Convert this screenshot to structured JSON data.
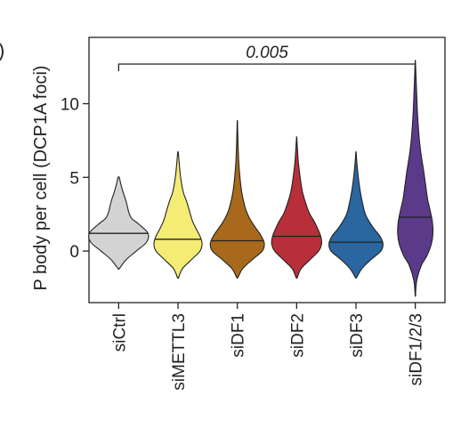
{
  "panel_label": ")",
  "chart_data": {
    "type": "violin",
    "title": "",
    "xlabel": "",
    "ylabel": "P body per cell (DCP1A foci)",
    "ylim": [
      -3.5,
      14.5
    ],
    "yticks": [
      0,
      5,
      10
    ],
    "categories": [
      "siCtrl",
      "siMETTL3",
      "siDF1",
      "siDF2",
      "siDF3",
      "siDF1/2/3"
    ],
    "colors": [
      "#d3d3d3",
      "#f5ec75",
      "#a8691c",
      "#b82f3a",
      "#2a66a0",
      "#5c3a8a"
    ],
    "median": [
      1.2,
      0.8,
      0.7,
      1.0,
      0.6,
      2.3
    ],
    "min": [
      -1.2,
      -1.8,
      -1.8,
      -1.8,
      -1.8,
      -3.0
    ],
    "max": [
      5.0,
      6.7,
      8.8,
      7.7,
      6.7,
      12.9
    ],
    "density_profiles": [
      [
        [
          -1.2,
          0.02
        ],
        [
          -0.6,
          0.25
        ],
        [
          0,
          0.6
        ],
        [
          0.6,
          0.95
        ],
        [
          1.2,
          1.0
        ],
        [
          1.8,
          0.7
        ],
        [
          2.2,
          0.45
        ],
        [
          2.6,
          0.35
        ],
        [
          3.0,
          0.3
        ],
        [
          3.4,
          0.25
        ],
        [
          4.0,
          0.15
        ],
        [
          4.5,
          0.08
        ],
        [
          5.0,
          0.02
        ]
      ],
      [
        [
          -1.8,
          0.02
        ],
        [
          -1.2,
          0.15
        ],
        [
          -0.6,
          0.45
        ],
        [
          0,
          0.75
        ],
        [
          0.5,
          0.82
        ],
        [
          1.0,
          0.75
        ],
        [
          1.5,
          0.62
        ],
        [
          2.0,
          0.5
        ],
        [
          2.5,
          0.42
        ],
        [
          3.0,
          0.35
        ],
        [
          3.5,
          0.27
        ],
        [
          4.0,
          0.18
        ],
        [
          5.0,
          0.09
        ],
        [
          6.0,
          0.04
        ],
        [
          6.7,
          0.01
        ]
      ],
      [
        [
          -1.8,
          0.02
        ],
        [
          -1.2,
          0.18
        ],
        [
          -0.6,
          0.5
        ],
        [
          0,
          0.85
        ],
        [
          0.5,
          0.92
        ],
        [
          1.0,
          0.82
        ],
        [
          1.5,
          0.65
        ],
        [
          2.0,
          0.48
        ],
        [
          2.5,
          0.35
        ],
        [
          3.0,
          0.26
        ],
        [
          4.0,
          0.15
        ],
        [
          5.0,
          0.09
        ],
        [
          6.0,
          0.05
        ],
        [
          7.0,
          0.03
        ],
        [
          8.0,
          0.015
        ],
        [
          8.8,
          0.005
        ]
      ],
      [
        [
          -1.8,
          0.02
        ],
        [
          -1.2,
          0.15
        ],
        [
          -0.6,
          0.45
        ],
        [
          0,
          0.75
        ],
        [
          0.5,
          0.85
        ],
        [
          1.0,
          0.82
        ],
        [
          1.5,
          0.72
        ],
        [
          2.0,
          0.6
        ],
        [
          2.5,
          0.45
        ],
        [
          3.0,
          0.35
        ],
        [
          4.0,
          0.2
        ],
        [
          5.0,
          0.12
        ],
        [
          6.0,
          0.06
        ],
        [
          7.0,
          0.025
        ],
        [
          7.7,
          0.005
        ]
      ],
      [
        [
          -1.8,
          0.02
        ],
        [
          -1.2,
          0.2
        ],
        [
          -0.6,
          0.5
        ],
        [
          0,
          0.85
        ],
        [
          0.5,
          0.92
        ],
        [
          1.0,
          0.82
        ],
        [
          1.5,
          0.62
        ],
        [
          2.0,
          0.45
        ],
        [
          2.5,
          0.32
        ],
        [
          3.0,
          0.25
        ],
        [
          4.0,
          0.15
        ],
        [
          5.0,
          0.08
        ],
        [
          6.0,
          0.03
        ],
        [
          6.7,
          0.005
        ]
      ],
      [
        [
          -3.0,
          0.005
        ],
        [
          -2.0,
          0.05
        ],
        [
          -1.0,
          0.2
        ],
        [
          -0.3,
          0.4
        ],
        [
          0.5,
          0.55
        ],
        [
          1.2,
          0.6
        ],
        [
          2.0,
          0.58
        ],
        [
          2.8,
          0.5
        ],
        [
          3.5,
          0.42
        ],
        [
          4.5,
          0.35
        ],
        [
          5.5,
          0.28
        ],
        [
          6.5,
          0.2
        ],
        [
          7.5,
          0.14
        ],
        [
          8.5,
          0.1
        ],
        [
          9.5,
          0.07
        ],
        [
          10.5,
          0.05
        ],
        [
          11.5,
          0.03
        ],
        [
          12.3,
          0.015
        ],
        [
          12.9,
          0.003
        ]
      ]
    ],
    "comparison": {
      "from": "siCtrl",
      "to": "siDF1/2/3",
      "label": "0.005"
    }
  }
}
